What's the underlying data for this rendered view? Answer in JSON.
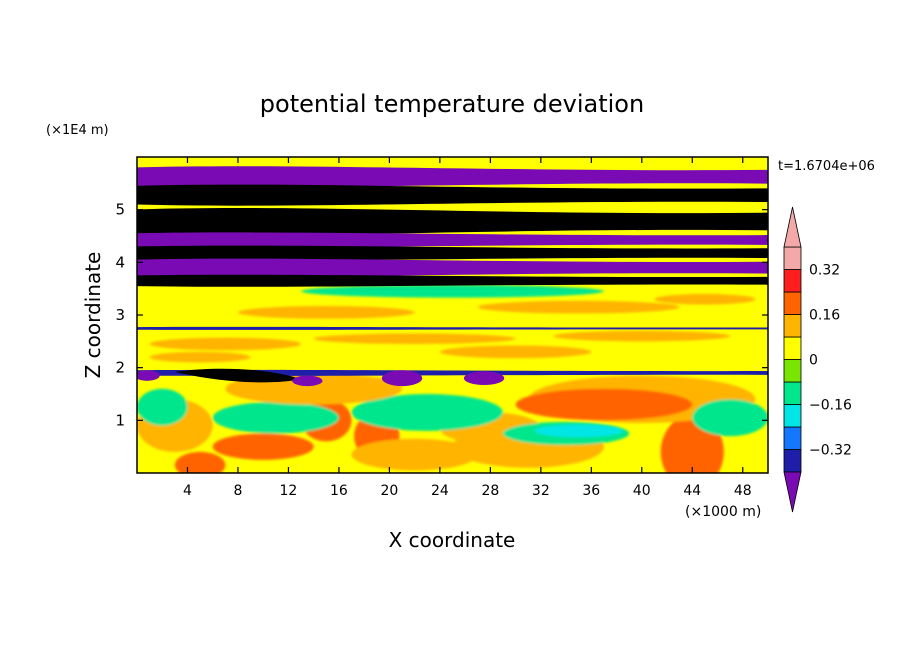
{
  "chart_data": {
    "type": "heatmap",
    "title": "potential temperature deviation",
    "xlabel": "X coordinate",
    "ylabel": "Z coordinate",
    "x_unit": "(×1000 m)",
    "y_unit": "(×1E4 m)",
    "time_label": "t=1.6704e+06",
    "xlim": [
      0,
      50
    ],
    "ylim": [
      0,
      6
    ],
    "x_ticks": [
      4,
      8,
      12,
      16,
      20,
      24,
      28,
      32,
      36,
      40,
      44,
      48
    ],
    "y_ticks": [
      1,
      2,
      3,
      4,
      5
    ],
    "colorbar": {
      "levels": [
        -0.4,
        -0.32,
        -0.24,
        -0.16,
        -0.08,
        0,
        0.08,
        0.16,
        0.24,
        0.32,
        0.4
      ],
      "labels": [
        "0.32",
        "0.16",
        "0",
        "−0.16",
        "−0.32"
      ],
      "label_values": [
        0.32,
        0.16,
        0,
        -0.16,
        -0.32
      ],
      "colors": [
        "#7a0ab4",
        "#1e1ea8",
        "#1478ff",
        "#00e6e6",
        "#00e68c",
        "#78e600",
        "#ffff00",
        "#ffb400",
        "#ff6400",
        "#ff1e1e",
        "#f5a8a8"
      ]
    },
    "bands": [
      {
        "z": [
          5.45,
          5.8
        ],
        "value": -0.45
      },
      {
        "z": [
          5.1,
          5.45
        ],
        "value": 0.45
      },
      {
        "z": [
          4.55,
          5.0
        ],
        "value": 0.45
      },
      {
        "z": [
          4.3,
          4.55
        ],
        "value": -0.45
      },
      {
        "z": [
          4.05,
          4.3
        ],
        "value": 0.45
      },
      {
        "z": [
          3.75,
          4.05
        ],
        "value": -0.45
      },
      {
        "z": [
          3.55,
          3.75
        ],
        "value": 0.45
      },
      {
        "z": [
          2.72,
          2.77
        ],
        "value": -0.36
      },
      {
        "z": [
          1.85,
          1.95
        ],
        "value": -0.36
      }
    ]
  }
}
